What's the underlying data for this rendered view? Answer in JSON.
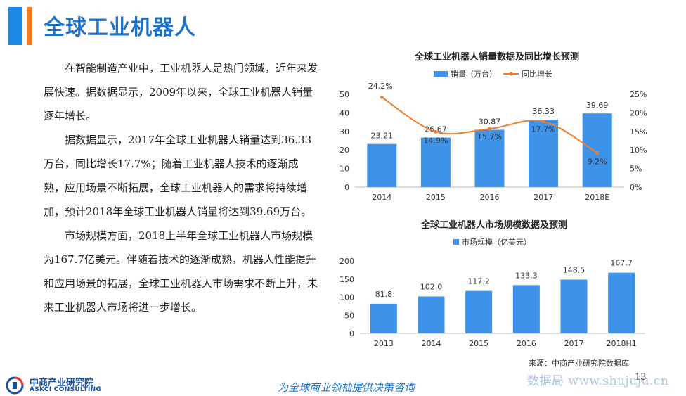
{
  "page": {
    "title": "全球工业机器人",
    "paragraphs": [
      "在智能制造产业中，工业机器人是热门领域，近年来发展快速。据数据显示，2009年以来，全球工业机器人销量逐年增长。",
      "据数据显示，2017年全球工业机器人销量达到36.33万台，同比增长17.7%；随着工业机器人技术的逐渐成熟，应用场景不断拓展，全球工业机器人的需求将持续增加，预计2018年全球工业机器人销量将达到39.69万台。",
      "市场规模方面，2018上半年全球工业机器人市场规模为167.7亿美元。伴随着技术的逐渐成熟，机器人性能提升和应用场景的拓展，全球工业机器人市场需求不断上升，未来工业机器人市场将进一步增长。"
    ],
    "source": "来源：中商产业研究院数据库",
    "page_number": "13",
    "slogan": "为全球商业领袖提供决策咨询",
    "watermark": "数据局 www.shujuju.cn",
    "logo_cn": "中商产业研究院",
    "logo_en": "ASKCI CONSULTING"
  },
  "colors": {
    "bar": "#3d93e8",
    "line": "#ef7d31",
    "title": "#1e73c8",
    "accent_blue": "#1e88e5",
    "accent_orange": "#f57c1f"
  },
  "chart_data": [
    {
      "type": "bar",
      "title": "全球工业机器人销量数据及同比增长预测",
      "categories": [
        "2014",
        "2015",
        "2016",
        "2017",
        "2018E"
      ],
      "series": [
        {
          "name": "销量（万台）",
          "type": "bar",
          "axis": "left",
          "values": [
            23.21,
            26.67,
            30.87,
            36.33,
            39.69
          ]
        },
        {
          "name": "同比增长",
          "type": "line",
          "axis": "right",
          "values": [
            24.2,
            14.9,
            15.7,
            17.7,
            9.2
          ],
          "labels": [
            "24.2%",
            "14.9%",
            "15.7%",
            "17.7%",
            "9.2%"
          ]
        }
      ],
      "ylim": [
        0,
        50
      ],
      "yticks": [
        "0",
        "10",
        "20",
        "30",
        "40",
        "50"
      ],
      "y2lim": [
        0,
        25
      ],
      "y2ticks": [
        "0%",
        "5%",
        "10%",
        "15%",
        "20%",
        "25%"
      ],
      "legend_position": "top",
      "grid": false
    },
    {
      "type": "bar",
      "title": "全球工业机器人市场规模数据及预测",
      "categories": [
        "2013",
        "2014",
        "2015",
        "2016",
        "2017",
        "2018H1"
      ],
      "series": [
        {
          "name": "市场规模（亿美元）",
          "values": [
            81.8,
            102.0,
            117.2,
            133.3,
            148.5,
            167.7
          ],
          "labels": [
            "81.8",
            "102.0",
            "117.2",
            "133.3",
            "148.5",
            "167.7"
          ]
        }
      ],
      "ylim": [
        0,
        200
      ],
      "yticks": [
        "0",
        "50",
        "100",
        "150",
        "200"
      ],
      "legend_position": "top",
      "grid": false
    }
  ]
}
